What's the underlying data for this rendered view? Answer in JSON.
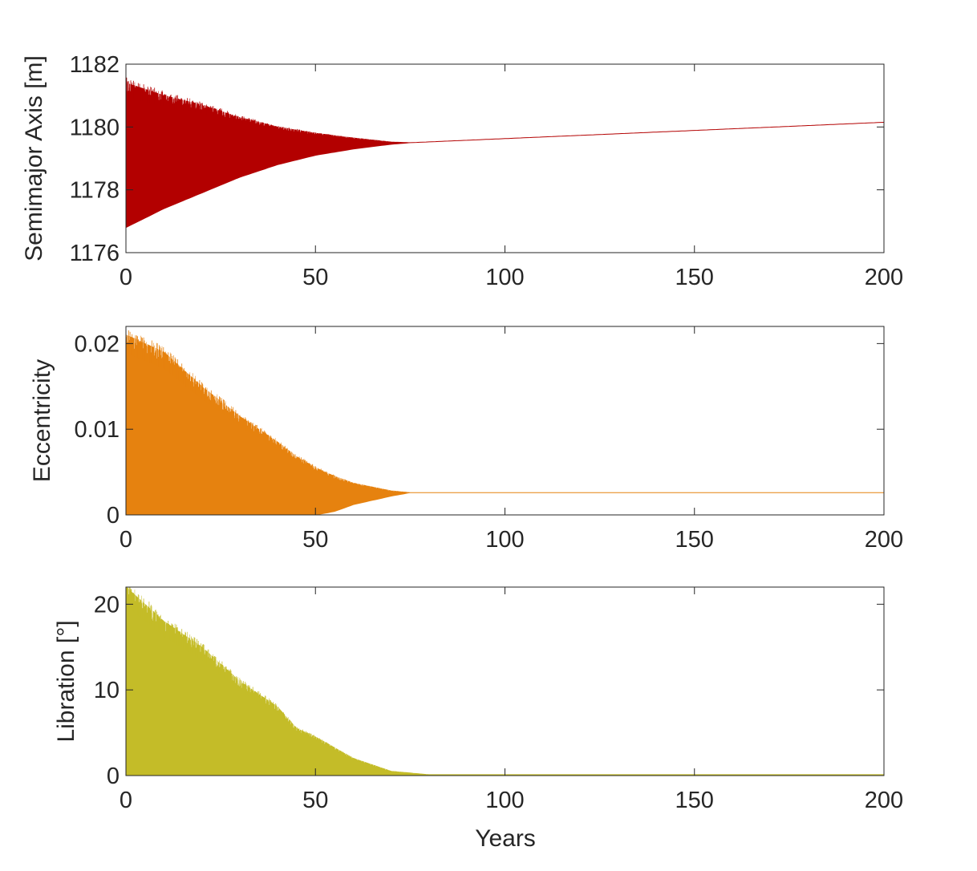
{
  "chart_data": [
    {
      "type": "area",
      "ylabel": "Semimajor Axis [m]",
      "xlabel": "",
      "xlim": [
        0,
        200
      ],
      "ylim": [
        1176,
        1182
      ],
      "xticks": [
        0,
        50,
        100,
        150,
        200
      ],
      "yticks": [
        1176,
        1178,
        1180,
        1182
      ],
      "color": "#b30000",
      "series": [
        {
          "x": [
            0,
            10,
            20,
            30,
            40,
            50,
            60,
            70,
            75,
            200
          ],
          "upper": [
            1181.4,
            1181.0,
            1180.7,
            1180.3,
            1180.0,
            1179.8,
            1179.65,
            1179.52,
            1179.5,
            1180.15
          ],
          "lower": [
            1176.8,
            1177.4,
            1177.9,
            1178.4,
            1178.8,
            1179.1,
            1179.3,
            1179.45,
            1179.5,
            1180.15
          ]
        }
      ]
    },
    {
      "type": "area",
      "ylabel": "Eccentricity",
      "xlabel": "",
      "xlim": [
        0,
        200
      ],
      "ylim": [
        0,
        0.022
      ],
      "xticks": [
        0,
        50,
        100,
        150,
        200
      ],
      "yticks": [
        0,
        0.01,
        0.02
      ],
      "color": "#e6820f",
      "series": [
        {
          "x": [
            0,
            10,
            20,
            30,
            40,
            45,
            50,
            55,
            60,
            70,
            75,
            200
          ],
          "upper": [
            0.021,
            0.019,
            0.015,
            0.0115,
            0.0085,
            0.0068,
            0.0055,
            0.0045,
            0.0037,
            0.0028,
            0.0026,
            0.0026
          ],
          "lower": [
            0,
            0,
            0,
            0,
            0,
            0,
            0,
            0.0004,
            0.0012,
            0.0022,
            0.0026,
            0.0026
          ]
        }
      ]
    },
    {
      "type": "area",
      "ylabel": "Libration [°]",
      "xlabel": "Years",
      "xlim": [
        0,
        200
      ],
      "ylim": [
        0,
        22
      ],
      "xticks": [
        0,
        50,
        100,
        150,
        200
      ],
      "yticks": [
        0,
        10,
        20
      ],
      "color": "#c4bc28",
      "series": [
        {
          "x": [
            0,
            10,
            20,
            30,
            40,
            45,
            50,
            60,
            70,
            80,
            200
          ],
          "upper": [
            22,
            18,
            15,
            11,
            8,
            5.5,
            4.5,
            2.0,
            0.5,
            0.1,
            0.1
          ],
          "lower": [
            0,
            0,
            0,
            0,
            0,
            0,
            0,
            0,
            0,
            0,
            0
          ]
        }
      ]
    }
  ]
}
